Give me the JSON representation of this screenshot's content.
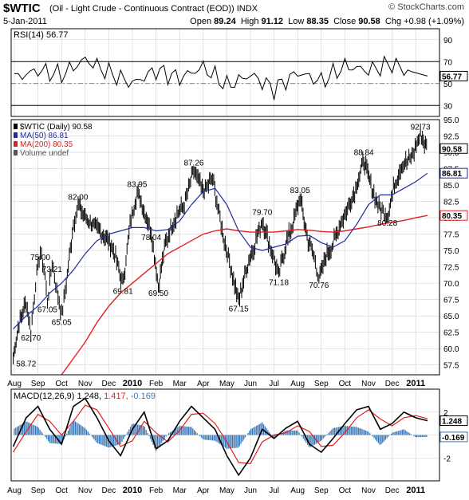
{
  "header": {
    "symbol": "$WTIC",
    "description": "(Oil - Light Crude - Continuous Contract (EOD)) INDX",
    "watermark": "© StockCharts.com",
    "date": "5-Jan-2011",
    "open_label": "Open",
    "open": "89.24",
    "high_label": "High",
    "high": "91.12",
    "low_label": "Low",
    "low": "88.35",
    "close_label": "Close",
    "close": "90.58",
    "chg_label": "Chg",
    "chg": "+0.98 (+1.09%)"
  },
  "colors": {
    "price": "#000000",
    "ma50": "#1f2a9e",
    "ma200": "#e02020",
    "macd_line": "#000000",
    "signal_line": "#e02020",
    "histogram": "#3a78b8",
    "grid": "#d0d0d0"
  },
  "chart_data": [
    {
      "type": "line",
      "panel": "rsi",
      "legend": "RSI(14) 56.77",
      "value_badge": "56.77",
      "ylim": [
        20,
        100
      ],
      "y_ticks": [
        "90",
        "70",
        "50",
        "30"
      ],
      "reference_lines": [
        70,
        30
      ],
      "x": [
        "Aug",
        "Sep",
        "Oct",
        "Nov",
        "Dec",
        "2010",
        "Feb",
        "Mar",
        "Apr",
        "May",
        "Jun",
        "Jul",
        "Aug",
        "Sep",
        "Oct",
        "Nov",
        "Dec",
        "2011"
      ],
      "values": [
        55,
        62,
        58,
        72,
        60,
        50,
        62,
        55,
        65,
        48,
        58,
        45,
        60,
        52,
        66,
        62,
        68,
        57
      ]
    },
    {
      "type": "line",
      "panel": "price",
      "series": [
        {
          "name": "$WTIC (Daily) 90.58"
        },
        {
          "name": "MA(50) 86.81"
        },
        {
          "name": "MA(200) 80.35"
        },
        {
          "name": "Volume undef"
        }
      ],
      "ylim": [
        56,
        95
      ],
      "y_ticks": [
        "95.0",
        "92.5",
        "90.0",
        "87.5",
        "85.0",
        "82.5",
        "80.0",
        "77.5",
        "75.0",
        "72.5",
        "70.0",
        "67.5",
        "65.0",
        "62.5",
        "60.0",
        "57.5"
      ],
      "badges": [
        "90.58",
        "86.81",
        "80.35"
      ],
      "x_labels": [
        "Aug",
        "Sep",
        "Oct",
        "Nov",
        "Dec",
        "2010",
        "Feb",
        "Mar",
        "Apr",
        "May",
        "Jun",
        "Jul",
        "Aug",
        "Sep",
        "Oct",
        "Nov",
        "Dec",
        "2011"
      ],
      "annotations": [
        {
          "label": "58.72",
          "x": 0.5,
          "y": 58.72
        },
        {
          "label": "62.70",
          "x": 0.7,
          "y": 62.7
        },
        {
          "label": "75.00",
          "x": 1.1,
          "y": 75.0
        },
        {
          "label": "67.05",
          "x": 1.4,
          "y": 67.05
        },
        {
          "label": "73.21",
          "x": 1.6,
          "y": 73.21
        },
        {
          "label": "65.05",
          "x": 2.0,
          "y": 65.05
        },
        {
          "label": "82.00",
          "x": 2.7,
          "y": 82.0
        },
        {
          "label": "69.81",
          "x": 4.6,
          "y": 69.81
        },
        {
          "label": "83.95",
          "x": 5.2,
          "y": 83.95
        },
        {
          "label": "78.04",
          "x": 5.8,
          "y": 78.04
        },
        {
          "label": "69.50",
          "x": 6.1,
          "y": 69.5
        },
        {
          "label": "87.26",
          "x": 7.6,
          "y": 87.26
        },
        {
          "label": "67.15",
          "x": 9.5,
          "y": 67.15
        },
        {
          "label": "79.70",
          "x": 10.5,
          "y": 79.7
        },
        {
          "label": "71.18",
          "x": 11.2,
          "y": 71.18
        },
        {
          "label": "83.05",
          "x": 12.1,
          "y": 83.05
        },
        {
          "label": "70.76",
          "x": 12.9,
          "y": 70.76
        },
        {
          "label": "88.84",
          "x": 14.8,
          "y": 88.84
        },
        {
          "label": "80.28",
          "x": 15.8,
          "y": 80.28
        },
        {
          "label": "92.73",
          "x": 17.2,
          "y": 92.73
        }
      ],
      "price_path": [
        [
          -0.05,
          58.72
        ],
        [
          0.2,
          64
        ],
        [
          0.5,
          67
        ],
        [
          0.7,
          62.7
        ],
        [
          0.9,
          70
        ],
        [
          1.1,
          75
        ],
        [
          1.3,
          71
        ],
        [
          1.4,
          67.05
        ],
        [
          1.6,
          73.21
        ],
        [
          1.8,
          69
        ],
        [
          2.0,
          65.05
        ],
        [
          2.2,
          70
        ],
        [
          2.5,
          79
        ],
        [
          2.7,
          82
        ],
        [
          3.0,
          80
        ],
        [
          3.3,
          79
        ],
        [
          3.6,
          78
        ],
        [
          3.9,
          77
        ],
        [
          4.2,
          75
        ],
        [
          4.6,
          69.81
        ],
        [
          4.9,
          79
        ],
        [
          5.2,
          83.95
        ],
        [
          5.5,
          81
        ],
        [
          5.8,
          78.04
        ],
        [
          6.1,
          69.5
        ],
        [
          6.4,
          76
        ],
        [
          6.8,
          80
        ],
        [
          7.2,
          82
        ],
        [
          7.6,
          87.26
        ],
        [
          8.0,
          84
        ],
        [
          8.4,
          86
        ],
        [
          8.8,
          78
        ],
        [
          9.2,
          72
        ],
        [
          9.5,
          67.15
        ],
        [
          9.8,
          72
        ],
        [
          10.1,
          75
        ],
        [
          10.5,
          79.7
        ],
        [
          10.8,
          76
        ],
        [
          11.2,
          71.18
        ],
        [
          11.5,
          76
        ],
        [
          11.8,
          79
        ],
        [
          12.1,
          83.05
        ],
        [
          12.4,
          77
        ],
        [
          12.7,
          74
        ],
        [
          12.9,
          70.76
        ],
        [
          13.2,
          74
        ],
        [
          13.5,
          76
        ],
        [
          13.8,
          79
        ],
        [
          14.2,
          82
        ],
        [
          14.5,
          85
        ],
        [
          14.8,
          88.84
        ],
        [
          15.1,
          85
        ],
        [
          15.4,
          82
        ],
        [
          15.8,
          80.28
        ],
        [
          16.1,
          85
        ],
        [
          16.4,
          88
        ],
        [
          16.8,
          89
        ],
        [
          17.2,
          92.73
        ],
        [
          17.5,
          90.58
        ]
      ],
      "ma50_path": [
        [
          -0.05,
          63
        ],
        [
          0.5,
          65
        ],
        [
          1.0,
          66.5
        ],
        [
          1.5,
          68.5
        ],
        [
          2.0,
          70
        ],
        [
          2.5,
          72
        ],
        [
          3.0,
          74.5
        ],
        [
          3.5,
          76.5
        ],
        [
          4.0,
          77.5
        ],
        [
          4.5,
          78
        ],
        [
          5.0,
          78.5
        ],
        [
          5.5,
          78.5
        ],
        [
          6.0,
          78
        ],
        [
          6.5,
          78.2
        ],
        [
          7.0,
          79.5
        ],
        [
          7.5,
          82
        ],
        [
          8.0,
          84
        ],
        [
          8.5,
          84.5
        ],
        [
          9.0,
          82
        ],
        [
          9.5,
          78
        ],
        [
          10.0,
          75.5
        ],
        [
          10.5,
          75
        ],
        [
          11.0,
          75.5
        ],
        [
          11.5,
          76
        ],
        [
          12.0,
          77.2
        ],
        [
          12.5,
          77.3
        ],
        [
          13.0,
          76.2
        ],
        [
          13.5,
          75.5
        ],
        [
          14.0,
          76.5
        ],
        [
          14.5,
          79
        ],
        [
          15.0,
          82
        ],
        [
          15.5,
          83.5
        ],
        [
          16.0,
          83.5
        ],
        [
          16.5,
          84.5
        ],
        [
          17.0,
          85.5
        ],
        [
          17.5,
          86.81
        ]
      ],
      "ma200_path": [
        [
          2.0,
          56
        ],
        [
          2.5,
          58.5
        ],
        [
          3.0,
          61
        ],
        [
          3.5,
          64
        ],
        [
          4.0,
          66.5
        ],
        [
          4.5,
          68.5
        ],
        [
          5.0,
          70
        ],
        [
          5.5,
          71.5
        ],
        [
          6.0,
          73
        ],
        [
          6.5,
          74.5
        ],
        [
          7.0,
          75.5
        ],
        [
          7.5,
          76.5
        ],
        [
          8.0,
          77.5
        ],
        [
          8.5,
          78
        ],
        [
          9.0,
          78.3
        ],
        [
          9.5,
          78
        ],
        [
          10.0,
          77.8
        ],
        [
          10.5,
          77.8
        ],
        [
          11.0,
          77.8
        ],
        [
          11.5,
          78
        ],
        [
          12.0,
          78.2
        ],
        [
          12.5,
          78.1
        ],
        [
          13.0,
          77.9
        ],
        [
          13.5,
          77.8
        ],
        [
          14.0,
          78
        ],
        [
          14.5,
          78.3
        ],
        [
          15.0,
          78.6
        ],
        [
          15.5,
          79
        ],
        [
          16.0,
          79.3
        ],
        [
          16.5,
          79.6
        ],
        [
          17.0,
          80
        ],
        [
          17.5,
          80.35
        ]
      ]
    },
    {
      "type": "line",
      "panel": "macd",
      "legend_name": "MACD(12,26,9)",
      "legend_values": [
        "1.248",
        "1.417",
        "-0.169"
      ],
      "value_badges": [
        "1.248",
        "-0.169"
      ],
      "ylim": [
        -4,
        4
      ],
      "y_ticks": [
        "2",
        "0",
        "-2"
      ],
      "x_labels": [
        "Aug",
        "Sep",
        "Oct",
        "Nov",
        "Dec",
        "2010",
        "Feb",
        "Mar",
        "Apr",
        "May",
        "Jun",
        "Jul",
        "Aug",
        "Sep",
        "Oct",
        "Nov",
        "Dec",
        "2011"
      ],
      "macd": [
        [
          -0.05,
          -1
        ],
        [
          0.5,
          1.5
        ],
        [
          1.0,
          2.5
        ],
        [
          1.5,
          0.5
        ],
        [
          2.0,
          -0.8
        ],
        [
          2.5,
          2.5
        ],
        [
          3.0,
          3.2
        ],
        [
          3.5,
          1.5
        ],
        [
          4.0,
          -0.5
        ],
        [
          4.5,
          -1.8
        ],
        [
          5.0,
          0.5
        ],
        [
          5.5,
          2
        ],
        [
          6.0,
          -1.2
        ],
        [
          6.5,
          -0.5
        ],
        [
          7.0,
          1.2
        ],
        [
          7.5,
          2.5
        ],
        [
          8.0,
          1.5
        ],
        [
          8.5,
          0.5
        ],
        [
          9.0,
          -1.8
        ],
        [
          9.5,
          -3.5
        ],
        [
          10.0,
          -2
        ],
        [
          10.5,
          0.5
        ],
        [
          11.0,
          -0.3
        ],
        [
          11.5,
          0.6
        ],
        [
          12.0,
          1.2
        ],
        [
          12.5,
          -0.8
        ],
        [
          13.0,
          -1.5
        ],
        [
          13.5,
          -0.3
        ],
        [
          14.0,
          1
        ],
        [
          14.5,
          2.2
        ],
        [
          15.0,
          2.5
        ],
        [
          15.5,
          0.5
        ],
        [
          16.0,
          1
        ],
        [
          16.5,
          2
        ],
        [
          17.0,
          1.5
        ],
        [
          17.5,
          1.248
        ]
      ],
      "signal": [
        [
          -0.05,
          -1.5
        ],
        [
          0.5,
          0.3
        ],
        [
          1.0,
          1.8
        ],
        [
          1.5,
          1.2
        ],
        [
          2.0,
          0
        ],
        [
          2.5,
          1.2
        ],
        [
          3.0,
          2.6
        ],
        [
          3.5,
          2.2
        ],
        [
          4.0,
          0.6
        ],
        [
          4.5,
          -1
        ],
        [
          5.0,
          -0.5
        ],
        [
          5.5,
          1.2
        ],
        [
          6.0,
          0.2
        ],
        [
          6.5,
          -0.6
        ],
        [
          7.0,
          0.4
        ],
        [
          7.5,
          1.8
        ],
        [
          8.0,
          1.9
        ],
        [
          8.5,
          1
        ],
        [
          9.0,
          -0.6
        ],
        [
          9.5,
          -2.4
        ],
        [
          10.0,
          -2.5
        ],
        [
          10.5,
          -0.6
        ],
        [
          11.0,
          0
        ],
        [
          11.5,
          0.2
        ],
        [
          12.0,
          0.8
        ],
        [
          12.5,
          0.3
        ],
        [
          13.0,
          -1
        ],
        [
          13.5,
          -0.9
        ],
        [
          14.0,
          0.2
        ],
        [
          14.5,
          1.5
        ],
        [
          15.0,
          2.2
        ],
        [
          15.5,
          1.4
        ],
        [
          16.0,
          0.8
        ],
        [
          16.5,
          1.5
        ],
        [
          17.0,
          1.7
        ],
        [
          17.5,
          1.417
        ]
      ]
    }
  ]
}
